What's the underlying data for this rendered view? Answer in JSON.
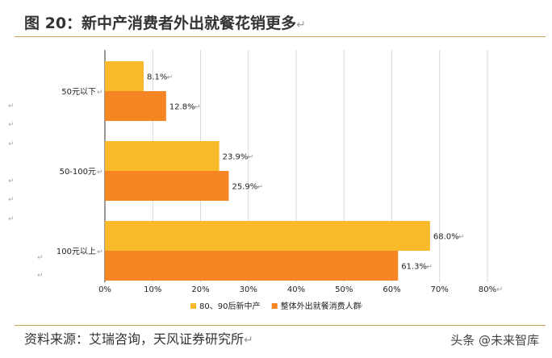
{
  "header": {
    "title": "图 20：新中产消费者外出就餐花销更多",
    "title_mark": "↵"
  },
  "chart_data": {
    "type": "bar",
    "orientation": "horizontal",
    "categories": [
      "50元以下",
      "50-100元",
      "100元以上"
    ],
    "series": [
      {
        "name": "80、90后新中产",
        "color": "#f8b92b",
        "values": [
          8.1,
          23.9,
          68.0
        ]
      },
      {
        "name": "整体外出就餐消费人群",
        "color": "#f68624",
        "values": [
          12.8,
          25.9,
          61.3
        ]
      }
    ],
    "value_labels": [
      [
        "8.1%",
        "23.9%",
        "68.0%"
      ],
      [
        "12.8%",
        "25.9%",
        "61.3%"
      ]
    ],
    "xlim": [
      0,
      80
    ],
    "xticks": [
      "0%",
      "10%",
      "20%",
      "30%",
      "40%",
      "50%",
      "60%",
      "70%",
      "80%"
    ],
    "grid": true,
    "legend_position": "bottom",
    "return_mark": "↵",
    "left_margin_marks": [
      "↵",
      "↵",
      "↵",
      "↵",
      "↵",
      "↵",
      "↵",
      "↵"
    ]
  },
  "footer": {
    "source": "资料来源：艾瑞咨询，天风证券研究所",
    "source_mark": "↵",
    "watermark": "头条 @未来智库"
  }
}
